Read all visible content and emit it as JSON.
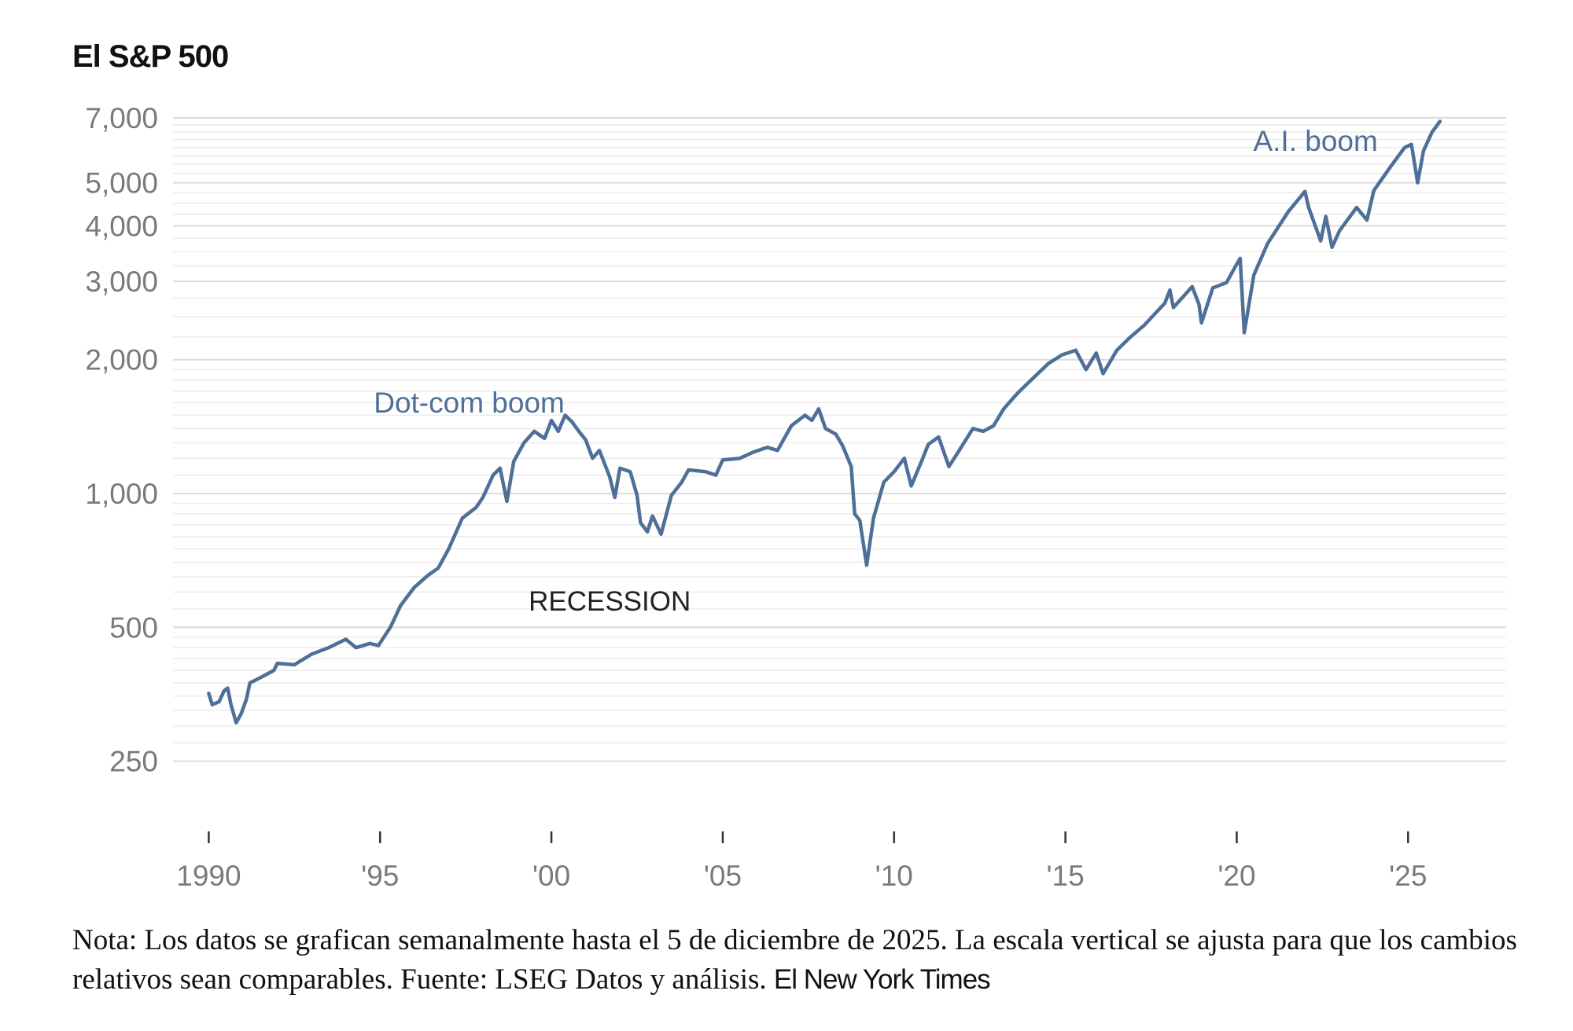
{
  "title": "El S&P 500",
  "chart_data": {
    "type": "line",
    "title": "El S&P 500",
    "xlabel": "",
    "ylabel": "",
    "yscale": "log",
    "ylim": [
      220,
      7200
    ],
    "xlim": [
      1989.6,
      2026.6
    ],
    "y_ticks": [
      {
        "value": 7000,
        "label": "7,000"
      },
      {
        "value": 5000,
        "label": "5,000"
      },
      {
        "value": 4000,
        "label": "4,000"
      },
      {
        "value": 3000,
        "label": "3,000"
      },
      {
        "value": 2000,
        "label": "2,000"
      },
      {
        "value": 1000,
        "label": "1,000"
      },
      {
        "value": 500,
        "label": "500"
      },
      {
        "value": 250,
        "label": "250"
      }
    ],
    "x_ticks": [
      {
        "value": 1990,
        "label": "1990"
      },
      {
        "value": 1995,
        "label": "'95"
      },
      {
        "value": 2000,
        "label": "'00"
      },
      {
        "value": 2005,
        "label": "'05"
      },
      {
        "value": 2010,
        "label": "'10"
      },
      {
        "value": 2015,
        "label": "'15"
      },
      {
        "value": 2020,
        "label": "'20"
      },
      {
        "value": 2025,
        "label": "'25"
      }
    ],
    "grid": true,
    "line_color": "#4e6f98",
    "series": [
      {
        "name": "S&P 500",
        "points": [
          [
            1990.0,
            355
          ],
          [
            1990.1,
            335
          ],
          [
            1990.3,
            340
          ],
          [
            1990.45,
            360
          ],
          [
            1990.55,
            365
          ],
          [
            1990.65,
            335
          ],
          [
            1990.8,
            305
          ],
          [
            1990.95,
            320
          ],
          [
            1991.1,
            345
          ],
          [
            1991.2,
            375
          ],
          [
            1991.5,
            385
          ],
          [
            1991.9,
            400
          ],
          [
            1992.0,
            415
          ],
          [
            1992.5,
            412
          ],
          [
            1993.0,
            435
          ],
          [
            1993.5,
            450
          ],
          [
            1994.0,
            470
          ],
          [
            1994.3,
            450
          ],
          [
            1994.7,
            460
          ],
          [
            1994.95,
            455
          ],
          [
            1995.3,
            500
          ],
          [
            1995.6,
            560
          ],
          [
            1996.0,
            615
          ],
          [
            1996.4,
            655
          ],
          [
            1996.7,
            680
          ],
          [
            1997.0,
            750
          ],
          [
            1997.4,
            880
          ],
          [
            1997.8,
            930
          ],
          [
            1998.0,
            980
          ],
          [
            1998.3,
            1100
          ],
          [
            1998.5,
            1140
          ],
          [
            1998.7,
            960
          ],
          [
            1998.9,
            1180
          ],
          [
            1999.2,
            1300
          ],
          [
            1999.5,
            1380
          ],
          [
            1999.8,
            1330
          ],
          [
            2000.0,
            1460
          ],
          [
            2000.2,
            1380
          ],
          [
            2000.4,
            1500
          ],
          [
            2000.6,
            1450
          ],
          [
            2000.8,
            1380
          ],
          [
            2001.0,
            1320
          ],
          [
            2001.2,
            1200
          ],
          [
            2001.4,
            1250
          ],
          [
            2001.7,
            1090
          ],
          [
            2001.85,
            980
          ],
          [
            2002.0,
            1140
          ],
          [
            2002.3,
            1120
          ],
          [
            2002.5,
            990
          ],
          [
            2002.6,
            860
          ],
          [
            2002.8,
            820
          ],
          [
            2002.95,
            890
          ],
          [
            2003.2,
            810
          ],
          [
            2003.5,
            990
          ],
          [
            2003.8,
            1060
          ],
          [
            2004.0,
            1130
          ],
          [
            2004.5,
            1120
          ],
          [
            2004.8,
            1100
          ],
          [
            2005.0,
            1190
          ],
          [
            2005.5,
            1200
          ],
          [
            2005.9,
            1240
          ],
          [
            2006.3,
            1270
          ],
          [
            2006.6,
            1250
          ],
          [
            2007.0,
            1420
          ],
          [
            2007.4,
            1500
          ],
          [
            2007.6,
            1460
          ],
          [
            2007.8,
            1550
          ],
          [
            2008.0,
            1400
          ],
          [
            2008.3,
            1360
          ],
          [
            2008.5,
            1280
          ],
          [
            2008.75,
            1150
          ],
          [
            2008.85,
            900
          ],
          [
            2009.0,
            870
          ],
          [
            2009.2,
            690
          ],
          [
            2009.4,
            880
          ],
          [
            2009.7,
            1060
          ],
          [
            2010.0,
            1120
          ],
          [
            2010.3,
            1200
          ],
          [
            2010.5,
            1040
          ],
          [
            2010.8,
            1180
          ],
          [
            2011.0,
            1290
          ],
          [
            2011.3,
            1340
          ],
          [
            2011.6,
            1150
          ],
          [
            2011.9,
            1250
          ],
          [
            2012.3,
            1400
          ],
          [
            2012.6,
            1380
          ],
          [
            2012.9,
            1420
          ],
          [
            2013.2,
            1550
          ],
          [
            2013.6,
            1680
          ],
          [
            2014.0,
            1800
          ],
          [
            2014.5,
            1960
          ],
          [
            2014.9,
            2050
          ],
          [
            2015.3,
            2100
          ],
          [
            2015.6,
            1900
          ],
          [
            2015.9,
            2070
          ],
          [
            2016.1,
            1860
          ],
          [
            2016.5,
            2100
          ],
          [
            2016.9,
            2250
          ],
          [
            2017.3,
            2390
          ],
          [
            2017.9,
            2680
          ],
          [
            2018.05,
            2870
          ],
          [
            2018.15,
            2620
          ],
          [
            2018.7,
            2920
          ],
          [
            2018.9,
            2660
          ],
          [
            2018.97,
            2420
          ],
          [
            2019.3,
            2900
          ],
          [
            2019.7,
            2980
          ],
          [
            2019.95,
            3230
          ],
          [
            2020.1,
            3380
          ],
          [
            2020.22,
            2300
          ],
          [
            2020.5,
            3100
          ],
          [
            2020.9,
            3650
          ],
          [
            2021.5,
            4300
          ],
          [
            2021.99,
            4780
          ],
          [
            2022.1,
            4400
          ],
          [
            2022.45,
            3700
          ],
          [
            2022.6,
            4200
          ],
          [
            2022.78,
            3580
          ],
          [
            2023.0,
            3900
          ],
          [
            2023.5,
            4400
          ],
          [
            2023.8,
            4120
          ],
          [
            2024.0,
            4800
          ],
          [
            2024.5,
            5450
          ],
          [
            2024.9,
            6000
          ],
          [
            2025.1,
            6100
          ],
          [
            2025.28,
            5000
          ],
          [
            2025.45,
            5900
          ],
          [
            2025.7,
            6500
          ],
          [
            2025.93,
            6870
          ]
        ]
      }
    ],
    "annotations": [
      {
        "text": "Dot-com boom",
        "x": 1997.6,
        "y": 1520,
        "color": "#4e6f98"
      },
      {
        "text": "RECESSION",
        "x": 2001.7,
        "y": 545,
        "color": "#222222"
      },
      {
        "text": "A.I. boom",
        "x": 2022.3,
        "y": 5900,
        "color": "#4e6f98"
      }
    ]
  },
  "footnote": {
    "note": "Nota:  Los datos se grafican semanalmente hasta el 5 de diciembre de 2025. La escala vertical se ajusta para que los cambios relativos sean comparables.  Fuente:  LSEG Datos y análisis.",
    "brand": "El New York Times"
  }
}
